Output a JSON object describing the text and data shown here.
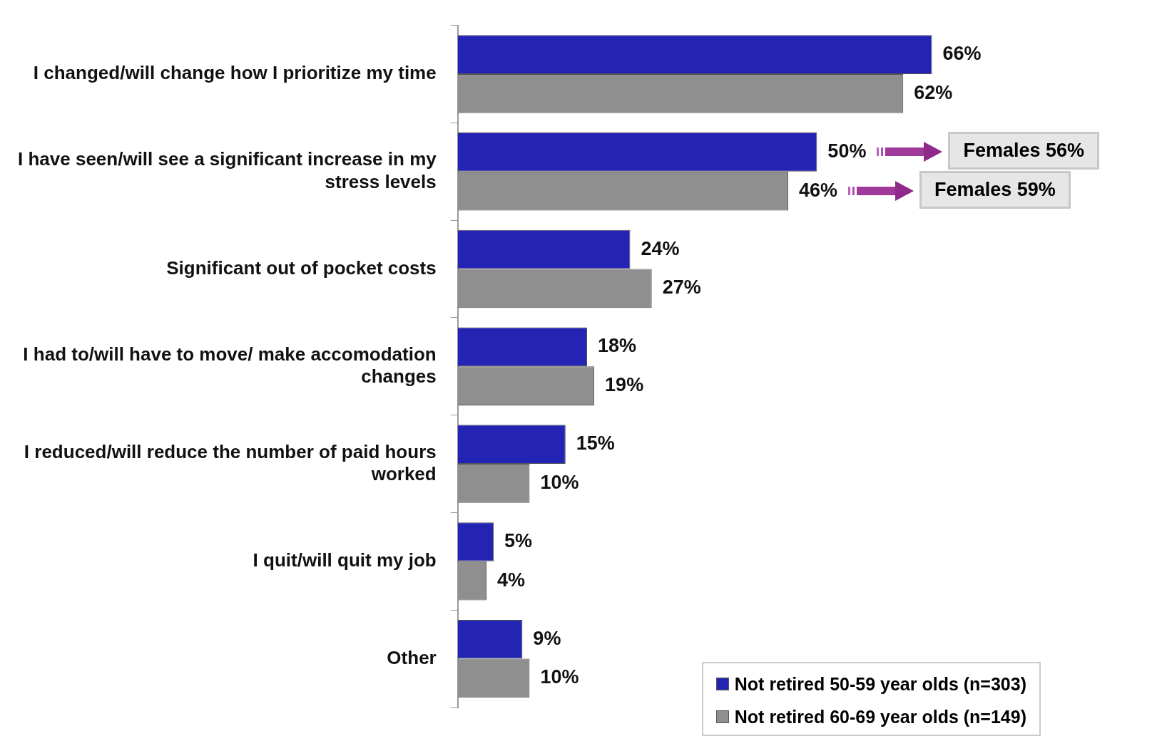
{
  "chart_data": {
    "type": "bar",
    "orientation": "horizontal",
    "legend": "bottom right",
    "grid": false,
    "categories": [
      "I changed/will change how I prioritize my time",
      "I have seen/will see a significant increase in my stress levels",
      "Significant out of pocket costs",
      "I had to/will have to move/ make accomodation changes",
      "I reduced/will reduce the number of paid hours worked",
      "I quit/will quit my job",
      "Other"
    ],
    "series": [
      {
        "name": "Not retired 50-59 year olds (n=303)",
        "color": "#2424b4",
        "values": [
          66,
          50,
          24,
          18,
          15,
          5,
          9
        ],
        "value_labels": [
          "66%",
          "50%",
          "24%",
          "18%",
          "15%",
          "5%",
          "9%"
        ]
      },
      {
        "name": "Not retired 60-69 year olds (n=149)",
        "color": "#8f8f8f",
        "values": [
          62,
          46,
          27,
          19,
          10,
          4,
          10
        ],
        "value_labels": [
          "62%",
          "46%",
          "27%",
          "19%",
          "10%",
          "4%",
          "10%"
        ]
      }
    ],
    "annotations": [
      "Females 56%",
      "Females 59%"
    ]
  }
}
